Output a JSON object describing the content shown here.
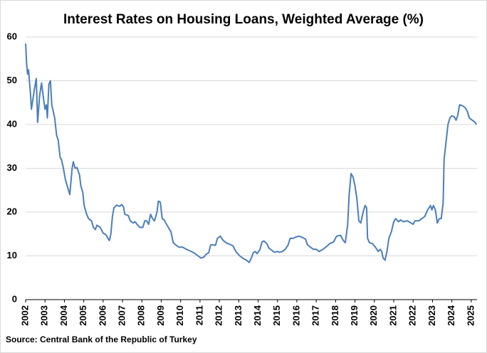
{
  "chart_data": {
    "type": "line",
    "title": "Interest Rates on Housing Loans, Weighted Average (%)",
    "source": "Source: Central Bank of the Republic of Turkey",
    "x": [
      2002.0,
      2002.05,
      2002.1,
      2002.15,
      2002.25,
      2002.3,
      2002.45,
      2002.55,
      2002.62,
      2002.72,
      2002.82,
      2002.95,
      2003.0,
      2003.07,
      2003.12,
      2003.2,
      2003.28,
      2003.35,
      2003.5,
      2003.6,
      2003.68,
      2003.78,
      2003.85,
      2003.95,
      2004.05,
      2004.18,
      2004.28,
      2004.4,
      2004.46,
      2004.55,
      2004.65,
      2004.78,
      2004.85,
      2004.95,
      2005.02,
      2005.15,
      2005.25,
      2005.4,
      2005.5,
      2005.6,
      2005.68,
      2005.85,
      2006.0,
      2006.15,
      2006.25,
      2006.32,
      2006.4,
      2006.48,
      2006.56,
      2006.7,
      2006.85,
      2006.95,
      2007.05,
      2007.12,
      2007.3,
      2007.4,
      2007.55,
      2007.65,
      2007.75,
      2007.9,
      2008.05,
      2008.15,
      2008.25,
      2008.35,
      2008.45,
      2008.55,
      2008.65,
      2008.78,
      2008.85,
      2008.95,
      2009.05,
      2009.15,
      2009.3,
      2009.5,
      2009.62,
      2009.75,
      2009.9,
      2010.1,
      2010.3,
      2010.55,
      2010.75,
      2010.9,
      2011.05,
      2011.2,
      2011.3,
      2011.45,
      2011.55,
      2011.7,
      2011.8,
      2011.9,
      2012.05,
      2012.2,
      2012.35,
      2012.5,
      2012.7,
      2012.85,
      2013.05,
      2013.2,
      2013.4,
      2013.54,
      2013.65,
      2013.75,
      2013.85,
      2013.95,
      2014.1,
      2014.2,
      2014.3,
      2014.45,
      2014.55,
      2014.7,
      2014.85,
      2015.0,
      2015.1,
      2015.25,
      2015.4,
      2015.55,
      2015.65,
      2015.8,
      2015.95,
      2016.1,
      2016.3,
      2016.45,
      2016.55,
      2016.7,
      2016.85,
      2017.0,
      2017.15,
      2017.35,
      2017.55,
      2017.7,
      2017.9,
      2018.05,
      2018.25,
      2018.4,
      2018.5,
      2018.62,
      2018.7,
      2018.8,
      2018.9,
      2019.0,
      2019.1,
      2019.2,
      2019.3,
      2019.42,
      2019.52,
      2019.6,
      2019.65,
      2019.75,
      2019.9,
      2020.05,
      2020.2,
      2020.3,
      2020.38,
      2020.45,
      2020.55,
      2020.65,
      2020.75,
      2020.88,
      2021.0,
      2021.1,
      2021.25,
      2021.35,
      2021.5,
      2021.7,
      2021.9,
      2022.0,
      2022.1,
      2022.3,
      2022.45,
      2022.6,
      2022.75,
      2022.9,
      2022.97,
      2023.05,
      2023.15,
      2023.25,
      2023.35,
      2023.45,
      2023.55,
      2023.6,
      2023.7,
      2023.8,
      2023.9,
      2024.0,
      2024.12,
      2024.22,
      2024.3,
      2024.4,
      2024.55,
      2024.7,
      2024.8,
      2024.9,
      2025.05,
      2025.2,
      2025.27
    ],
    "series": [
      {
        "name": "Interest Rates on Housing Loans",
        "color": "#4a7ebb",
        "values": [
          58.5,
          54,
          51.5,
          52.5,
          47,
          43.5,
          48,
          50.5,
          40.5,
          46.5,
          49.5,
          45,
          43.5,
          44.5,
          41.5,
          49.2,
          50,
          44.5,
          41.5,
          37.5,
          36.5,
          32.5,
          32,
          30,
          27.5,
          25.5,
          24,
          30,
          31.5,
          30,
          30.2,
          28.5,
          26,
          24.5,
          21.5,
          19.5,
          18.5,
          18,
          16.5,
          16,
          17,
          16.5,
          15.2,
          14.8,
          14,
          13.5,
          15,
          19,
          21,
          21.6,
          21.3,
          21.7,
          21.2,
          19.5,
          19.2,
          18,
          17.5,
          17.8,
          17.2,
          16.5,
          16.5,
          18,
          18,
          17.2,
          19.5,
          18.5,
          18,
          20,
          22.5,
          22.3,
          18.5,
          18.2,
          17,
          15.5,
          13,
          12.5,
          12,
          12,
          11.5,
          11,
          10.5,
          10,
          9.5,
          9.7,
          10.3,
          10.7,
          12.5,
          12.5,
          12.4,
          14,
          14.5,
          13.5,
          13,
          12.7,
          12.3,
          11,
          10,
          9.5,
          9,
          8.5,
          9.5,
          10.7,
          11,
          10.5,
          11.5,
          13.2,
          13.4,
          12.8,
          11.8,
          11.3,
          10.8,
          11,
          10.8,
          11,
          11.5,
          12.5,
          14,
          14,
          14.3,
          14.5,
          14.2,
          13.8,
          12.5,
          12,
          11.5,
          11.5,
          11,
          11.5,
          12.2,
          12.8,
          13.2,
          14.5,
          14.7,
          13.5,
          13,
          17,
          24,
          28.8,
          28,
          26,
          23,
          18,
          17.5,
          20,
          21.5,
          21,
          14,
          13,
          12.8,
          12,
          11,
          11.5,
          11,
          9.5,
          9,
          11,
          14,
          15.5,
          17.8,
          18.5,
          17.8,
          18.2,
          17.8,
          18,
          17.5,
          17.2,
          18,
          18,
          18.5,
          19,
          20.5,
          21.5,
          20.5,
          21.5,
          20.5,
          17.5,
          18.5,
          18.5,
          22,
          32,
          36,
          40,
          41.5,
          42,
          41.8,
          41,
          42,
          44.5,
          44.3,
          43.8,
          43,
          41.5,
          41,
          40.5,
          40
        ]
      }
    ],
    "xlim": [
      2002,
      2025.3
    ],
    "xticks": [
      2002,
      2003,
      2004,
      2005,
      2006,
      2007,
      2008,
      2009,
      2010,
      2011,
      2012,
      2013,
      2014,
      2015,
      2016,
      2017,
      2018,
      2019,
      2020,
      2021,
      2022,
      2023,
      2024,
      2025
    ],
    "ylim": [
      0,
      60
    ],
    "yticks": [
      0,
      10,
      20,
      30,
      40,
      50,
      60
    ],
    "grid": true
  }
}
